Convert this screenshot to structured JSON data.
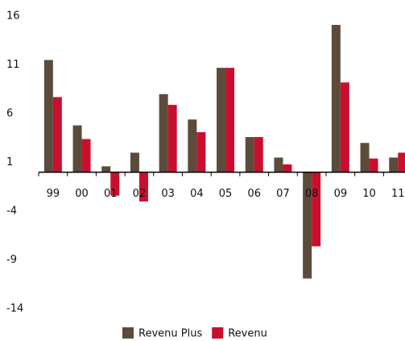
{
  "chart_data": {
    "type": "bar",
    "categories": [
      "99",
      "00",
      "01",
      "02",
      "03",
      "04",
      "05",
      "06",
      "07",
      "08",
      "09",
      "10",
      "11"
    ],
    "series": [
      {
        "name": "Revenu Plus",
        "color": "#5b4b3a",
        "values": [
          11.5,
          4.8,
          0.6,
          2.0,
          8.0,
          5.4,
          10.7,
          3.6,
          1.5,
          -10.9,
          15.1,
          3.0,
          1.5
        ]
      },
      {
        "name": "Revenu",
        "color": "#c8102e",
        "values": [
          7.7,
          3.4,
          -2.4,
          -3.0,
          6.9,
          4.1,
          10.7,
          3.6,
          0.8,
          -7.6,
          9.2,
          1.4,
          2.0
        ]
      }
    ],
    "ylim": [
      -14,
      16
    ],
    "yticks": [
      16,
      11,
      6,
      1,
      -4,
      -9,
      -14
    ],
    "grid": false,
    "legend": "bottom"
  }
}
